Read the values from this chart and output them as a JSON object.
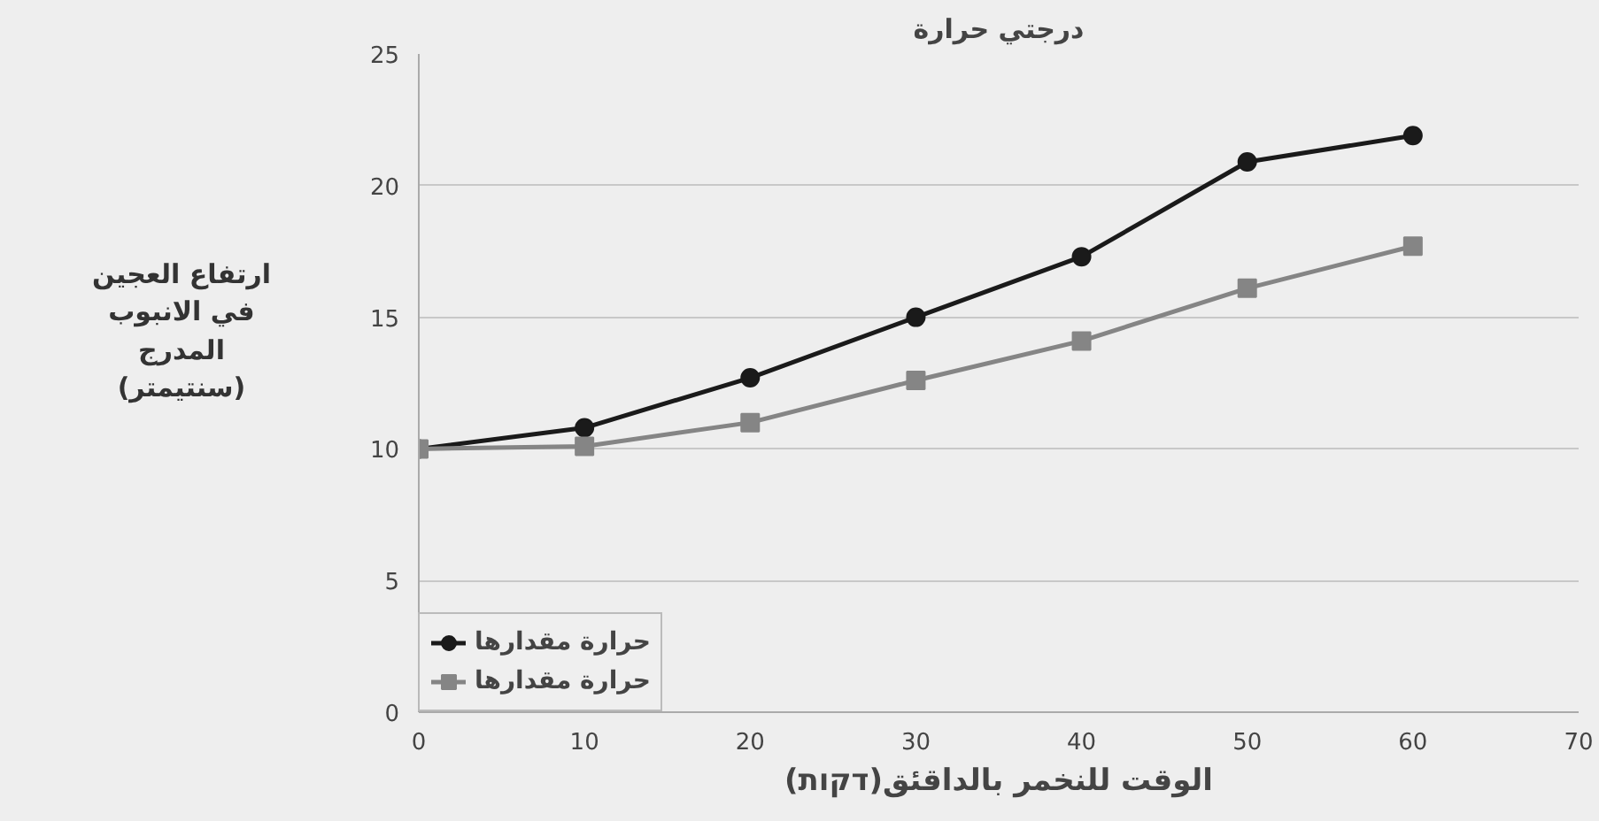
{
  "chart_data": {
    "type": "line",
    "title": "درجتي حرارة",
    "xlabel": "الوقت للنخمر بالداقئق(דקות)",
    "ylabel": "ارتفاع العجين\nفي الانبوب\nالمدرج\n(سنتيمتر)",
    "x": [
      0,
      10,
      20,
      30,
      40,
      50,
      60
    ],
    "series": [
      {
        "name": "حرارة مقدارها",
        "color": "#1a1a1a",
        "marker": "circle",
        "values": [
          10,
          10.8,
          12.7,
          15.0,
          17.3,
          20.9,
          21.9
        ]
      },
      {
        "name": "حرارة مقدارها",
        "color": "#858585",
        "marker": "square",
        "values": [
          10,
          10.1,
          11.0,
          12.6,
          14.1,
          16.1,
          17.7
        ]
      }
    ],
    "xlim": [
      0,
      70
    ],
    "xticks": [
      0,
      10,
      20,
      30,
      40,
      50,
      60,
      70
    ],
    "ylim": [
      0,
      25
    ],
    "yticks": [
      0,
      5,
      10,
      15,
      20,
      25
    ],
    "grid": "y",
    "legend": "bottom left",
    "line_style": "solid"
  }
}
